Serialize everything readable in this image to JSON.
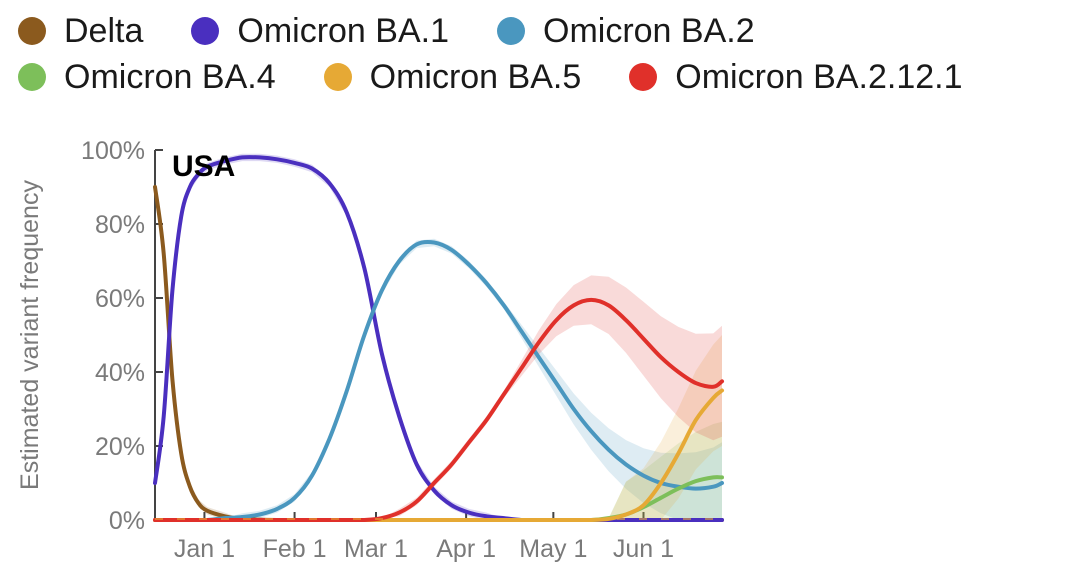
{
  "chart_data": {
    "type": "line",
    "title": "USA",
    "xlabel": "",
    "ylabel": "Estimated variant frequency",
    "ylim": [
      0,
      100
    ],
    "yticks": [
      0,
      20,
      40,
      60,
      80,
      100
    ],
    "ytick_labels": [
      "0%",
      "20%",
      "40%",
      "60%",
      "80%",
      "100%"
    ],
    "xlim_days": [
      0,
      195
    ],
    "xticks_days": [
      17,
      48,
      76,
      107,
      137,
      168
    ],
    "xtick_labels": [
      "Jan 1",
      "Feb 1",
      "Mar 1",
      "Apr 1",
      "May 1",
      "Jun 1"
    ],
    "x_days": [
      0,
      3,
      6,
      9,
      12,
      15,
      18,
      24,
      30,
      36,
      42,
      48,
      54,
      60,
      66,
      72,
      78,
      84,
      90,
      96,
      102,
      108,
      114,
      120,
      126,
      132,
      138,
      144,
      150,
      156,
      162,
      168,
      174,
      180,
      186,
      192,
      195
    ],
    "series": [
      {
        "name": "Delta",
        "color": "#8b5a1e",
        "values": [
          90,
          72,
          38,
          18,
          9,
          4.5,
          2.5,
          1,
          0.3,
          0.1,
          0,
          0,
          0,
          0,
          0,
          0,
          0,
          0,
          0,
          0,
          0,
          0,
          0,
          0,
          0,
          0,
          0,
          0,
          0,
          0,
          0,
          0,
          0,
          0,
          0,
          0,
          0
        ]
      },
      {
        "name": "Omicron BA.1",
        "color": "#4a2fbf",
        "values": [
          10,
          28,
          62,
          82,
          90,
          93.5,
          95.5,
          97,
          98,
          98,
          97.5,
          96.5,
          95,
          91,
          83,
          68,
          45,
          28,
          15,
          8,
          4,
          2,
          1,
          0.5,
          0,
          0,
          0,
          0,
          0,
          0,
          0,
          0,
          0,
          0,
          0,
          0,
          0
        ]
      },
      {
        "name": "Omicron BA.2",
        "color": "#4a97bf",
        "values": [
          0,
          0,
          0,
          0,
          0,
          0,
          0,
          0.5,
          0.8,
          1.5,
          3,
          6,
          12,
          22,
          35,
          50,
          62,
          70,
          74.5,
          75,
          73,
          69,
          64,
          58,
          51,
          44,
          37,
          30,
          24,
          19,
          15,
          12,
          10,
          9,
          8.5,
          9,
          10
        ]
      },
      {
        "name": "Omicron BA.4",
        "color": "#7dbf5a",
        "values": [
          0,
          0,
          0,
          0,
          0,
          0,
          0,
          0,
          0,
          0,
          0,
          0,
          0,
          0,
          0,
          0,
          0,
          0,
          0,
          0,
          0,
          0,
          0,
          0,
          0,
          0,
          0,
          0,
          0,
          0.5,
          1.5,
          3.5,
          6,
          8.5,
          10.5,
          11.5,
          11.5
        ]
      },
      {
        "name": "Omicron BA.5",
        "color": "#e6a935",
        "values": [
          0,
          0,
          0,
          0,
          0,
          0,
          0,
          0,
          0,
          0,
          0,
          0,
          0,
          0,
          0,
          0,
          0,
          0,
          0,
          0,
          0,
          0,
          0,
          0,
          0,
          0,
          0,
          0,
          0,
          0.3,
          1.5,
          4,
          10,
          18,
          27,
          33,
          35
        ]
      },
      {
        "name": "Omicron BA.2.12.1",
        "color": "#e0302a",
        "values": [
          0,
          0,
          0,
          0,
          0,
          0,
          0,
          0,
          0,
          0,
          0,
          0,
          0,
          0,
          0,
          0,
          0.5,
          2,
          5,
          10,
          15,
          21,
          27,
          34,
          41,
          48,
          54,
          58,
          59.5,
          58,
          54,
          49,
          44,
          40,
          37,
          36,
          37.5
        ]
      }
    ]
  }
}
